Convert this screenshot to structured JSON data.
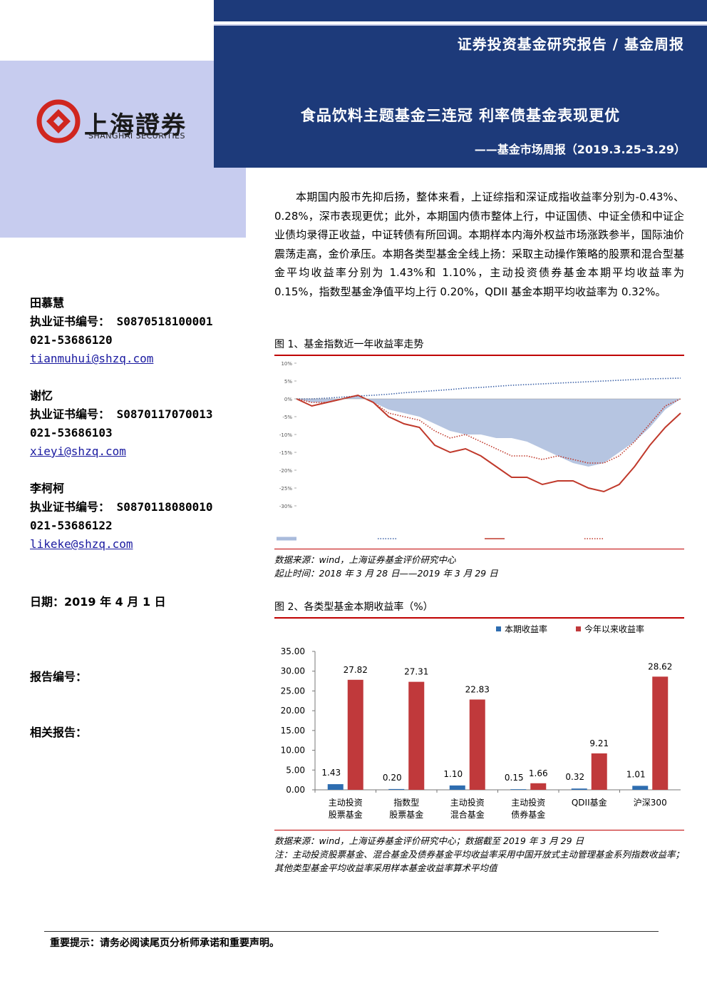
{
  "header": {
    "series": "证券投资基金研究报告 / 基金周报",
    "logo_cn": "上海證券",
    "logo_en": "SHANGHAI SECURITIES",
    "headline": "食品饮料主题基金三连冠 利率债基金表现更优",
    "subtitle": "——基金市场周报（2019.3.25-3.29）"
  },
  "authors": [
    {
      "name": "田慕慧",
      "license": "执业证书编号：  S0870518100001",
      "phone": "021-53686120",
      "email": "tianmuhui@shzq.com"
    },
    {
      "name": "谢忆",
      "license": "执业证书编号：  S0870117070013",
      "phone": "021-53686103",
      "email": "xieyi@shzq.com"
    },
    {
      "name": "李柯柯",
      "license": "执业证书编号：  S0870118080010",
      "phone": "021-53686122",
      "email": "likeke@shzq.com"
    }
  ],
  "meta": {
    "date": "日期：2019 年 4 月 1 日",
    "report_no": "报告编号：",
    "related": "相关报告："
  },
  "summary": "本期国内股市先抑后扬，整体来看，上证综指和深证成指收益率分别为-0.43%、0.28%，深市表现更优；此外，本期国内债市整体上行，中证国债、中证全债和中证企业债均录得正收益，中证转债有所回调。本期样本内海外权益市场涨跌参半，国际油价震荡走高，金价承压。本期各类型基金全线上扬：采取主动操作策略的股票和混合型基金平均收益率分别为 1.43%和 1.10%，主动投资债券基金本期平均收益率为 0.15%，指数型基金净值平均上行 0.20%，QDII 基金本期平均收益率为 0.32%。",
  "figure1": {
    "caption": "图 1、基金指数近一年收益率走势",
    "type": "line",
    "ylim": [
      -30,
      10
    ],
    "yticks": [
      {
        "value": 10,
        "label": "10%"
      },
      {
        "value": 5,
        "label": "5%"
      },
      {
        "value": 0,
        "label": "0%"
      },
      {
        "value": -5,
        "label": "-5%"
      },
      {
        "value": -10,
        "label": "-10%"
      },
      {
        "value": -15,
        "label": "-15%"
      },
      {
        "value": -20,
        "label": "-20%"
      },
      {
        "value": -25,
        "label": "-25%"
      },
      {
        "value": -30,
        "label": "-30%"
      }
    ],
    "series": [
      {
        "kind": "area",
        "color": "#a9bbdc",
        "values": [
          0,
          -1,
          -1,
          0,
          1,
          -1,
          -3,
          -4,
          -5,
          -7,
          -9,
          -10,
          -10,
          -11,
          -11,
          -12,
          -14,
          -16,
          -18,
          -19,
          -18,
          -15,
          -12,
          -8,
          -3,
          0
        ]
      },
      {
        "kind": "dotted",
        "color": "#3e63a8",
        "values": [
          0,
          0,
          0.2,
          0.5,
          0.8,
          1,
          1.3,
          1.7,
          2,
          2.3,
          2.6,
          3,
          3.2,
          3.5,
          3.8,
          4,
          4.2,
          4.4,
          4.6,
          4.8,
          5,
          5.2,
          5.4,
          5.6,
          5.7,
          5.8
        ]
      },
      {
        "kind": "solid",
        "color": "#c0392b",
        "values": [
          0,
          -2,
          -1,
          0,
          1,
          -1,
          -5,
          -7,
          -8,
          -13,
          -15,
          -14,
          -16,
          -19,
          -22,
          -22,
          -24,
          -23,
          -23,
          -25,
          -26,
          -24,
          -19,
          -13,
          -8,
          -4
        ]
      },
      {
        "kind": "dotted",
        "color": "#c0392b",
        "values": [
          0,
          -1,
          -1,
          0,
          1,
          -1,
          -4,
          -5,
          -6,
          -9,
          -11,
          -10,
          -12,
          -14,
          -16,
          -16,
          -17,
          -16,
          -17,
          -18,
          -18,
          -16,
          -12,
          -7,
          -2,
          0
        ]
      }
    ],
    "source": "数据来源：wind，上海证券基金评价研究中心",
    "period": "起止时间：2018 年 3 月 28 日——2019 年 3 月 29 日"
  },
  "figure2": {
    "caption": "图 2、各类型基金本期收益率（%）",
    "type": "bar",
    "ylim": [
      0,
      35
    ],
    "yticks": [
      {
        "value": 35,
        "label": "35.00"
      },
      {
        "value": 30,
        "label": "30.00"
      },
      {
        "value": 25,
        "label": "25.00"
      },
      {
        "value": 20,
        "label": "20.00"
      },
      {
        "value": 15,
        "label": "15.00"
      },
      {
        "value": 10,
        "label": "10.00"
      },
      {
        "value": 5,
        "label": "5.00"
      },
      {
        "value": 0,
        "label": "0.00"
      }
    ],
    "categories": [
      [
        "主动投资",
        "股票基金"
      ],
      [
        "指数型",
        "股票基金"
      ],
      [
        "主动投资",
        "混合基金"
      ],
      [
        "主动投资",
        "债券基金"
      ],
      [
        "QDII基金"
      ],
      [
        "沪深300"
      ]
    ],
    "series": [
      {
        "name": "本期收益率",
        "color": "#2e6db0",
        "values": [
          1.43,
          0.2,
          1.1,
          0.15,
          0.32,
          1.01
        ],
        "value_labels": [
          "1.43",
          "0.20",
          "1.10",
          "0.15",
          "0.32",
          "1.01"
        ]
      },
      {
        "name": "今年以来收益率",
        "color": "#c0393b",
        "values": [
          27.82,
          27.31,
          22.83,
          1.66,
          9.21,
          28.62
        ],
        "value_labels": [
          "27.82",
          "27.31",
          "22.83",
          "1.66",
          "9.21",
          "28.62"
        ]
      }
    ],
    "source": "数据来源：wind，上海证券基金评价研究中心；数据截至 2019 年 3 月 29 日",
    "note": "注：主动投资股票基金、混合基金及债券基金平均收益率采用中国开放式主动管理基金系列指数收益率；其他类型基金平均收益率采用样本基金收益率算术平均值"
  },
  "footer": "重要提示：请务必阅读尾页分析师承诺和重要声明。"
}
